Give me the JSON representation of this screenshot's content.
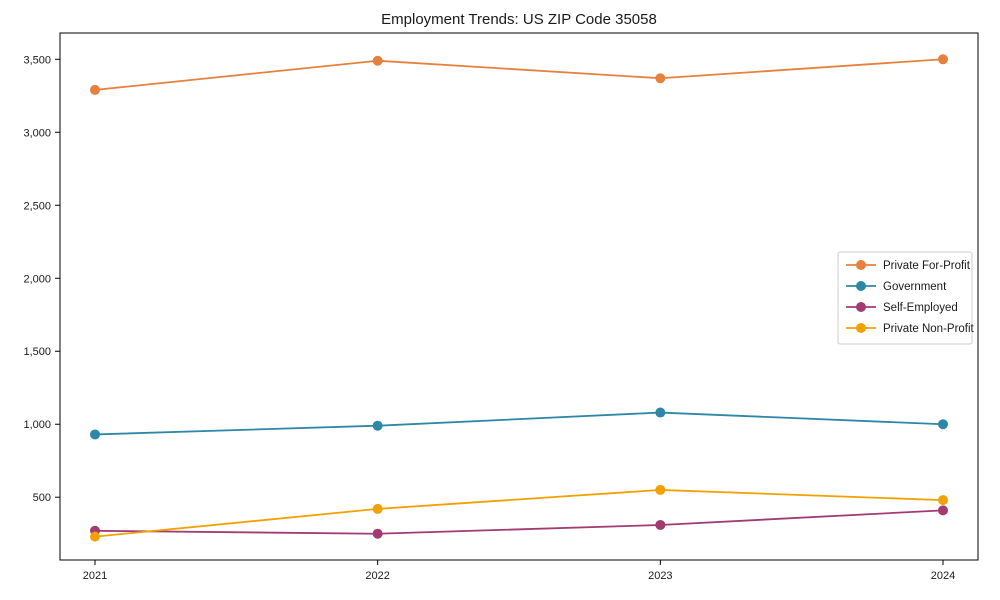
{
  "title": "Employment Trends: US ZIP Code 35058",
  "chart_data": {
    "type": "line",
    "title": "Employment Trends: US ZIP Code 35058",
    "xlabel": "",
    "ylabel": "",
    "categories": [
      "2021",
      "2022",
      "2023",
      "2024"
    ],
    "series": [
      {
        "name": "Private For-Profit",
        "color": "#e8803d",
        "values": [
          3290,
          3490,
          3370,
          3500
        ]
      },
      {
        "name": "Government",
        "color": "#2d87a8",
        "values": [
          930,
          990,
          1080,
          1000
        ]
      },
      {
        "name": "Self-Employed",
        "color": "#a23b72",
        "values": [
          270,
          250,
          310,
          410
        ]
      },
      {
        "name": "Private Non-Profit",
        "color": "#f2a104",
        "values": [
          230,
          420,
          550,
          480
        ]
      }
    ],
    "ylim": [
      70,
      3680
    ],
    "yticks": [
      500,
      1000,
      1500,
      2000,
      2500,
      3000,
      3500
    ],
    "ytick_labels": [
      "500",
      "1,000",
      "1,500",
      "2,000",
      "2,500",
      "3,000",
      "3,500"
    ],
    "grid": false,
    "marker": "o",
    "legend_position": "center right",
    "colors": {
      "axis": "#000000",
      "text": "#1a1a1a",
      "legend_border": "#cccccc",
      "background": "#ffffff"
    }
  }
}
